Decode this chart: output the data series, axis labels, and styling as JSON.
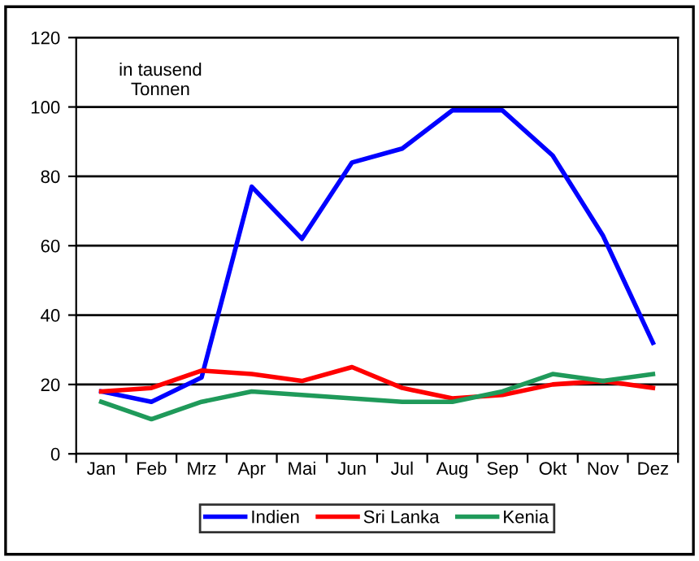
{
  "chart_data": {
    "type": "line",
    "categories": [
      "Jan",
      "Feb",
      "Mrz",
      "Apr",
      "Mai",
      "Jun",
      "Jul",
      "Aug",
      "Sep",
      "Okt",
      "Nov",
      "Dez"
    ],
    "series": [
      {
        "name": "Indien",
        "color": "#0000ff",
        "values": [
          18,
          15,
          22,
          77,
          62,
          84,
          88,
          99,
          99,
          86,
          63,
          32
        ]
      },
      {
        "name": "Sri Lanka",
        "color": "#ff0000",
        "values": [
          18,
          19,
          24,
          23,
          21,
          25,
          19,
          16,
          17,
          20,
          21,
          19
        ]
      },
      {
        "name": "Kenia",
        "color": "#1f9a5a",
        "values": [
          15,
          10,
          15,
          18,
          17,
          16,
          15,
          15,
          18,
          23,
          21,
          23
        ]
      }
    ],
    "ylim": [
      0,
      120
    ],
    "yticks": [
      0,
      20,
      40,
      60,
      80,
      100,
      120
    ],
    "grid": "y",
    "legend": "bottom",
    "marker": "none",
    "line_style": "solid",
    "annotations": [
      "in tausend\nTonnen"
    ]
  }
}
